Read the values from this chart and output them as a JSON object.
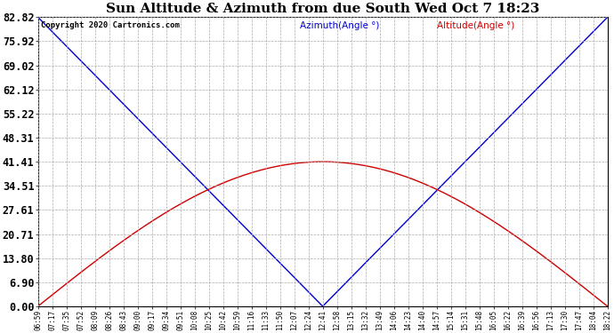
{
  "title": "Sun Altitude & Azimuth from due South Wed Oct 7 18:23",
  "title_fontsize": 11,
  "copyright": "Copyright 2020 Cartronics.com",
  "legend_azimuth": "Azimuth(Angle °)",
  "legend_altitude": "Altitude(Angle °)",
  "ytick_labels": [
    "0.00",
    "6.90",
    "13.80",
    "20.71",
    "27.61",
    "34.51",
    "41.41",
    "48.31",
    "55.22",
    "62.12",
    "69.02",
    "75.92",
    "82.82"
  ],
  "xtick_labels": [
    "06:59",
    "07:17",
    "07:35",
    "07:52",
    "08:09",
    "08:26",
    "08:43",
    "09:00",
    "09:17",
    "09:34",
    "09:51",
    "10:08",
    "10:25",
    "10:42",
    "10:59",
    "11:16",
    "11:33",
    "11:50",
    "12:07",
    "12:24",
    "12:41",
    "12:58",
    "13:15",
    "13:32",
    "13:49",
    "14:06",
    "14:23",
    "14:40",
    "14:57",
    "15:14",
    "15:31",
    "15:48",
    "16:05",
    "16:22",
    "16:39",
    "16:56",
    "17:13",
    "17:30",
    "17:47",
    "18:04",
    "18:22"
  ],
  "azimuth_color": "#0000cc",
  "altitude_color": "#cc0000",
  "grid_color": "#aaaaaa",
  "background_color": "#ffffff",
  "fig_bg_color": "#ffffff",
  "noon_idx": 20,
  "max_azimuth": 82.82,
  "max_altitude": 41.41,
  "ytick_fontsize": 8.5,
  "xtick_fontsize": 5.5,
  "legend_fontsize": 7.5,
  "copyright_fontsize": 6.5
}
